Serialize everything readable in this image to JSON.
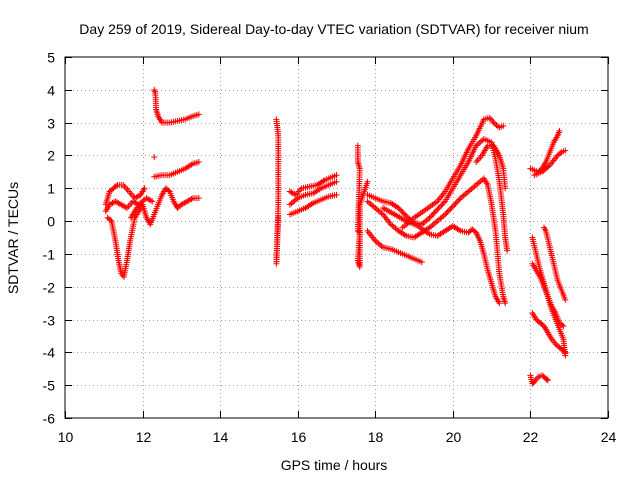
{
  "chart_data": {
    "type": "scatter",
    "title": "Day 259 of 2019, Sidereal Day-to-day VTEC variation (SDTVAR) for receiver nium",
    "xlabel": "GPS time / hours",
    "ylabel": "SDTVAR / TECUs",
    "xlim": [
      10,
      24
    ],
    "ylim": [
      -6,
      5
    ],
    "xticks": [
      10,
      12,
      14,
      16,
      18,
      20,
      22,
      24
    ],
    "yticks": [
      -6,
      -5,
      -4,
      -3,
      -2,
      -1,
      0,
      1,
      2,
      3,
      4,
      5
    ],
    "grid": true,
    "marker": "+",
    "color": "#ff0000",
    "segments": [
      {
        "name": "early-a",
        "points": [
          [
            11.05,
            0.5
          ],
          [
            11.15,
            0.9
          ],
          [
            11.25,
            1.0
          ],
          [
            11.35,
            1.1
          ],
          [
            11.5,
            1.1
          ],
          [
            11.65,
            0.9
          ],
          [
            11.8,
            0.7
          ],
          [
            11.95,
            0.8
          ],
          [
            12.05,
            1.0
          ]
        ]
      },
      {
        "name": "early-b",
        "points": [
          [
            11.05,
            0.3
          ],
          [
            11.15,
            0.5
          ],
          [
            11.3,
            0.6
          ],
          [
            11.45,
            0.5
          ],
          [
            11.6,
            0.4
          ],
          [
            11.75,
            0.6
          ],
          [
            11.9,
            0.5
          ],
          [
            12.1,
            0.7
          ],
          [
            12.25,
            0.6
          ]
        ]
      },
      {
        "name": "early-c",
        "points": [
          [
            11.1,
            0.1
          ],
          [
            11.2,
            0.0
          ],
          [
            11.3,
            -0.6
          ],
          [
            11.38,
            -1.2
          ],
          [
            11.45,
            -1.6
          ],
          [
            11.52,
            -1.7
          ],
          [
            11.6,
            -1.2
          ],
          [
            11.68,
            -0.6
          ],
          [
            11.8,
            0.1
          ],
          [
            11.95,
            0.4
          ]
        ]
      },
      {
        "name": "early-d",
        "points": [
          [
            11.7,
            0.1
          ],
          [
            11.85,
            0.4
          ],
          [
            12.0,
            0.5
          ],
          [
            12.1,
            0.1
          ],
          [
            12.2,
            -0.1
          ],
          [
            12.3,
            0.2
          ],
          [
            12.4,
            0.5
          ],
          [
            12.5,
            0.8
          ],
          [
            12.6,
            1.0
          ],
          [
            12.7,
            0.9
          ],
          [
            12.8,
            0.6
          ],
          [
            12.9,
            0.4
          ],
          [
            13.0,
            0.5
          ],
          [
            13.15,
            0.6
          ],
          [
            13.3,
            0.7
          ],
          [
            13.45,
            0.7
          ]
        ]
      },
      {
        "name": "early-e",
        "points": [
          [
            12.3,
            1.35
          ],
          [
            12.5,
            1.4
          ],
          [
            12.7,
            1.4
          ],
          [
            12.9,
            1.5
          ],
          [
            13.1,
            1.6
          ],
          [
            13.3,
            1.75
          ],
          [
            13.45,
            1.8
          ]
        ]
      },
      {
        "name": "early-f",
        "points": [
          [
            12.3,
            4.0
          ],
          [
            12.33,
            3.9
          ],
          [
            12.35,
            3.4
          ],
          [
            12.4,
            3.2
          ],
          [
            12.5,
            3.0
          ],
          [
            12.7,
            3.0
          ],
          [
            12.9,
            3.05
          ],
          [
            13.1,
            3.1
          ],
          [
            13.3,
            3.2
          ],
          [
            13.45,
            3.25
          ]
        ]
      },
      {
        "name": "early-g",
        "points": [
          [
            12.3,
            1.95
          ]
        ]
      },
      {
        "name": "mid-iso",
        "points": [
          [
            15.45,
            3.1
          ],
          [
            15.5,
            2.6
          ],
          [
            15.5,
            0.5
          ],
          [
            15.45,
            -1.3
          ],
          [
            15.5,
            0.15
          ]
        ]
      },
      {
        "name": "mid-a",
        "points": [
          [
            15.8,
            0.9
          ],
          [
            15.95,
            0.8
          ],
          [
            16.1,
            1.0
          ],
          [
            16.3,
            1.05
          ],
          [
            16.5,
            1.1
          ],
          [
            16.7,
            1.25
          ],
          [
            16.9,
            1.35
          ],
          [
            17.0,
            1.4
          ]
        ]
      },
      {
        "name": "mid-b",
        "points": [
          [
            15.8,
            0.5
          ],
          [
            16.0,
            0.7
          ],
          [
            16.2,
            0.8
          ],
          [
            16.4,
            0.85
          ],
          [
            16.6,
            1.0
          ],
          [
            16.8,
            1.1
          ],
          [
            17.0,
            1.2
          ]
        ]
      },
      {
        "name": "mid-c",
        "points": [
          [
            15.8,
            0.2
          ],
          [
            16.0,
            0.3
          ],
          [
            16.2,
            0.4
          ],
          [
            16.4,
            0.55
          ],
          [
            16.6,
            0.65
          ],
          [
            16.8,
            0.75
          ],
          [
            17.0,
            0.8
          ]
        ]
      },
      {
        "name": "late-iso",
        "points": [
          [
            17.55,
            2.3
          ],
          [
            17.55,
            2.1
          ],
          [
            17.55,
            1.8
          ],
          [
            17.6,
            1.6
          ],
          [
            17.55,
            -0.3
          ],
          [
            17.6,
            -0.35
          ],
          [
            17.55,
            -1.2
          ],
          [
            17.6,
            -1.4
          ],
          [
            17.6,
            0.5
          ],
          [
            17.8,
            1.2
          ]
        ]
      },
      {
        "name": "late-a",
        "points": [
          [
            17.8,
            0.8
          ],
          [
            18.0,
            0.7
          ],
          [
            18.2,
            0.6
          ],
          [
            18.4,
            0.55
          ],
          [
            18.6,
            0.4
          ],
          [
            18.8,
            0.15
          ],
          [
            19.0,
            -0.05
          ],
          [
            19.2,
            -0.1
          ],
          [
            19.4,
            0.1
          ],
          [
            19.6,
            0.35
          ],
          [
            19.8,
            0.6
          ],
          [
            20.0,
            1.0
          ],
          [
            20.2,
            1.4
          ],
          [
            20.4,
            1.8
          ],
          [
            20.6,
            2.3
          ],
          [
            20.8,
            2.5
          ],
          [
            21.0,
            2.4
          ],
          [
            21.1,
            1.9
          ],
          [
            21.2,
            1.2
          ],
          [
            21.3,
            0.2
          ],
          [
            21.35,
            -0.5
          ],
          [
            21.4,
            -0.9
          ]
        ]
      },
      {
        "name": "late-b",
        "points": [
          [
            17.8,
            0.6
          ],
          [
            18.0,
            0.4
          ],
          [
            18.2,
            0.2
          ],
          [
            18.4,
            -0.1
          ],
          [
            18.6,
            -0.3
          ],
          [
            18.8,
            -0.45
          ],
          [
            19.0,
            -0.5
          ],
          [
            19.2,
            -0.35
          ],
          [
            19.4,
            -0.2
          ],
          [
            19.6,
            0.0
          ],
          [
            19.8,
            0.2
          ],
          [
            20.0,
            0.45
          ],
          [
            20.2,
            0.7
          ],
          [
            20.4,
            0.9
          ],
          [
            20.6,
            1.1
          ],
          [
            20.8,
            1.3
          ],
          [
            20.9,
            1.1
          ],
          [
            21.0,
            0.5
          ],
          [
            21.1,
            -0.3
          ],
          [
            21.2,
            -1.6
          ],
          [
            21.3,
            -2.3
          ],
          [
            21.35,
            -2.5
          ]
        ]
      },
      {
        "name": "late-c",
        "points": [
          [
            17.8,
            -0.3
          ],
          [
            18.0,
            -0.6
          ],
          [
            18.2,
            -0.8
          ],
          [
            18.4,
            -0.85
          ],
          [
            18.6,
            -0.95
          ],
          [
            18.8,
            -1.05
          ],
          [
            19.0,
            -1.15
          ],
          [
            19.2,
            -1.25
          ]
        ]
      },
      {
        "name": "late-d",
        "points": [
          [
            18.2,
            0.4
          ],
          [
            18.5,
            0.2
          ],
          [
            18.8,
            0.0
          ],
          [
            19.1,
            -0.15
          ],
          [
            19.4,
            -0.4
          ],
          [
            19.6,
            -0.45
          ],
          [
            19.8,
            -0.3
          ],
          [
            20.0,
            -0.15
          ],
          [
            20.2,
            -0.3
          ],
          [
            20.4,
            -0.35
          ],
          [
            20.5,
            -0.25
          ],
          [
            20.6,
            -0.35
          ],
          [
            20.7,
            -0.6
          ],
          [
            20.8,
            -1.0
          ],
          [
            20.9,
            -1.5
          ],
          [
            21.0,
            -1.9
          ],
          [
            21.1,
            -2.3
          ],
          [
            21.2,
            -2.5
          ]
        ]
      },
      {
        "name": "late-e",
        "points": [
          [
            18.7,
            -0.2
          ],
          [
            19.0,
            0.1
          ],
          [
            19.3,
            0.35
          ],
          [
            19.6,
            0.6
          ],
          [
            19.8,
            0.9
          ],
          [
            20.0,
            1.3
          ],
          [
            20.2,
            1.7
          ],
          [
            20.4,
            2.2
          ],
          [
            20.6,
            2.6
          ],
          [
            20.8,
            3.1
          ],
          [
            20.95,
            3.15
          ],
          [
            21.05,
            3.0
          ],
          [
            21.2,
            2.85
          ],
          [
            21.3,
            2.9
          ]
        ]
      },
      {
        "name": "late-f",
        "points": [
          [
            20.6,
            1.8
          ],
          [
            20.75,
            2.0
          ],
          [
            20.9,
            2.3
          ],
          [
            21.05,
            2.3
          ],
          [
            21.2,
            2.0
          ],
          [
            21.3,
            1.6
          ],
          [
            21.35,
            1.0
          ]
        ]
      },
      {
        "name": "end-a",
        "points": [
          [
            22.0,
            1.6
          ],
          [
            22.1,
            1.55
          ],
          [
            22.2,
            1.5
          ],
          [
            22.3,
            1.6
          ],
          [
            22.4,
            1.8
          ],
          [
            22.5,
            2.1
          ],
          [
            22.6,
            2.4
          ],
          [
            22.7,
            2.6
          ],
          [
            22.75,
            2.75
          ]
        ]
      },
      {
        "name": "end-b",
        "points": [
          [
            22.1,
            1.4
          ],
          [
            22.2,
            1.45
          ],
          [
            22.3,
            1.5
          ],
          [
            22.4,
            1.6
          ],
          [
            22.5,
            1.7
          ],
          [
            22.6,
            1.85
          ],
          [
            22.7,
            2.0
          ],
          [
            22.8,
            2.1
          ],
          [
            22.9,
            2.15
          ]
        ]
      },
      {
        "name": "end-c",
        "points": [
          [
            22.05,
            -0.5
          ],
          [
            22.15,
            -1.0
          ],
          [
            22.25,
            -1.5
          ],
          [
            22.35,
            -1.9
          ],
          [
            22.45,
            -2.3
          ],
          [
            22.55,
            -2.7
          ],
          [
            22.65,
            -3.0
          ],
          [
            22.75,
            -3.3
          ],
          [
            22.85,
            -3.6
          ],
          [
            22.9,
            -4.1
          ]
        ]
      },
      {
        "name": "end-d",
        "points": [
          [
            22.05,
            -1.3
          ],
          [
            22.15,
            -1.5
          ],
          [
            22.25,
            -1.7
          ],
          [
            22.35,
            -2.0
          ],
          [
            22.45,
            -2.3
          ],
          [
            22.55,
            -2.6
          ],
          [
            22.65,
            -2.8
          ],
          [
            22.75,
            -3.1
          ],
          [
            22.85,
            -3.2
          ]
        ]
      },
      {
        "name": "end-e",
        "points": [
          [
            22.05,
            -2.8
          ],
          [
            22.15,
            -3.0
          ],
          [
            22.25,
            -3.1
          ],
          [
            22.35,
            -3.2
          ],
          [
            22.45,
            -3.4
          ],
          [
            22.55,
            -3.6
          ],
          [
            22.65,
            -3.75
          ],
          [
            22.75,
            -3.85
          ],
          [
            22.85,
            -3.95
          ],
          [
            22.9,
            -4.0
          ]
        ]
      },
      {
        "name": "end-f",
        "points": [
          [
            22.35,
            -0.2
          ],
          [
            22.4,
            -0.3
          ],
          [
            22.5,
            -0.8
          ],
          [
            22.6,
            -1.3
          ],
          [
            22.7,
            -1.8
          ],
          [
            22.8,
            -2.1
          ],
          [
            22.9,
            -2.4
          ]
        ]
      },
      {
        "name": "end-g",
        "points": [
          [
            22.0,
            -4.7
          ],
          [
            22.05,
            -4.95
          ],
          [
            22.1,
            -4.9
          ],
          [
            22.2,
            -4.75
          ],
          [
            22.3,
            -4.7
          ],
          [
            22.4,
            -4.8
          ],
          [
            22.45,
            -4.85
          ]
        ]
      }
    ]
  }
}
